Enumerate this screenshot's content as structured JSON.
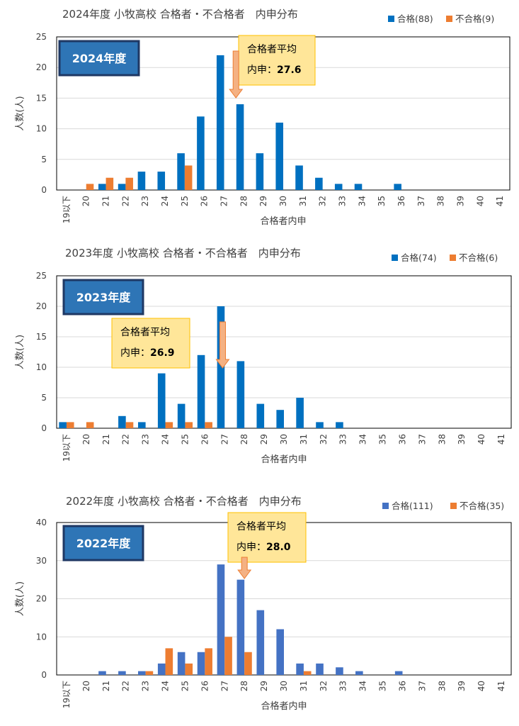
{
  "chart_data": [
    {
      "type": "bar",
      "title": "2024年度 小牧高校 合格者・不合格者　内申分布",
      "badge": "2024年度",
      "xlabel": "合格者内申",
      "ylabel": "人数(人)",
      "ylim": [
        0,
        25
      ],
      "yticks": [
        0,
        5,
        10,
        15,
        20,
        25
      ],
      "grid": true,
      "legend_position": "top-right",
      "categories": [
        "19以下",
        "20",
        "21",
        "22",
        "23",
        "24",
        "25",
        "26",
        "27",
        "28",
        "29",
        "30",
        "31",
        "32",
        "33",
        "34",
        "35",
        "36",
        "37",
        "38",
        "39",
        "40",
        "41"
      ],
      "series": [
        {
          "name": "合格(88)",
          "color": "#0070C0",
          "values": [
            0,
            0,
            1,
            1,
            3,
            3,
            6,
            12,
            22,
            14,
            6,
            11,
            4,
            2,
            1,
            1,
            0,
            1,
            0,
            0,
            0,
            0,
            0
          ]
        },
        {
          "name": "不合格(9)",
          "color": "#ED7D31",
          "values": [
            0,
            1,
            2,
            2,
            0,
            0,
            4,
            0,
            0,
            0,
            0,
            0,
            0,
            0,
            0,
            0,
            0,
            0,
            0,
            0,
            0,
            0,
            0
          ]
        }
      ],
      "callout": {
        "line1": "合格者平均",
        "line2_label": "内申：",
        "line2_value": "27.6",
        "points_to": 27.6
      }
    },
    {
      "type": "bar",
      "title": "2023年度 小牧高校 合格者・不合格者　内申分布",
      "badge": "2023年度",
      "xlabel": "合格者内申",
      "ylabel": "人数(人)",
      "ylim": [
        0,
        25
      ],
      "yticks": [
        0,
        5,
        10,
        15,
        20,
        25
      ],
      "grid": true,
      "legend_position": "top-right",
      "categories": [
        "19以下",
        "20",
        "21",
        "22",
        "23",
        "24",
        "25",
        "26",
        "27",
        "28",
        "29",
        "30",
        "31",
        "32",
        "33",
        "34",
        "35",
        "36",
        "37",
        "38",
        "39",
        "40",
        "41"
      ],
      "series": [
        {
          "name": "合格(74)",
          "color": "#0070C0",
          "values": [
            1,
            0,
            0,
            2,
            1,
            9,
            4,
            12,
            20,
            11,
            4,
            3,
            5,
            1,
            1,
            0,
            0,
            0,
            0,
            0,
            0,
            0,
            0
          ]
        },
        {
          "name": "不合格(6)",
          "color": "#ED7D31",
          "values": [
            1,
            1,
            0,
            1,
            0,
            1,
            1,
            1,
            0,
            0,
            0,
            0,
            0,
            0,
            0,
            0,
            0,
            0,
            0,
            0,
            0,
            0,
            0
          ]
        }
      ],
      "callout": {
        "line1": "合格者平均",
        "line2_label": "内申：",
        "line2_value": "26.9",
        "points_to": 26.9
      }
    },
    {
      "type": "bar",
      "title": "2022年度 小牧高校 合格者・不合格者　内申分布",
      "badge": "2022年度",
      "xlabel": "合格者内申",
      "ylabel": "人数(人)",
      "ylim": [
        0,
        40
      ],
      "yticks": [
        0,
        10,
        20,
        30,
        40
      ],
      "grid": true,
      "legend_position": "top-right",
      "categories": [
        "19以下",
        "20",
        "21",
        "22",
        "23",
        "24",
        "25",
        "26",
        "27",
        "28",
        "29",
        "30",
        "31",
        "32",
        "33",
        "34",
        "35",
        "36",
        "37",
        "38",
        "39",
        "40",
        "41"
      ],
      "series": [
        {
          "name": "合格(111)",
          "color": "#4472C4",
          "values": [
            0,
            0,
            1,
            1,
            1,
            3,
            6,
            6,
            29,
            25,
            17,
            12,
            3,
            3,
            2,
            1,
            0,
            1,
            0,
            0,
            0,
            0,
            0
          ]
        },
        {
          "name": "不合格(35)",
          "color": "#ED7D31",
          "values": [
            0,
            0,
            0,
            0,
            1,
            7,
            3,
            7,
            10,
            6,
            0,
            0,
            1,
            0,
            0,
            0,
            0,
            0,
            0,
            0,
            0,
            0,
            0
          ]
        }
      ],
      "callout": {
        "line1": "合格者平均",
        "line2_label": "内申：",
        "line2_value": "28.0",
        "points_to": 28.0
      }
    }
  ]
}
